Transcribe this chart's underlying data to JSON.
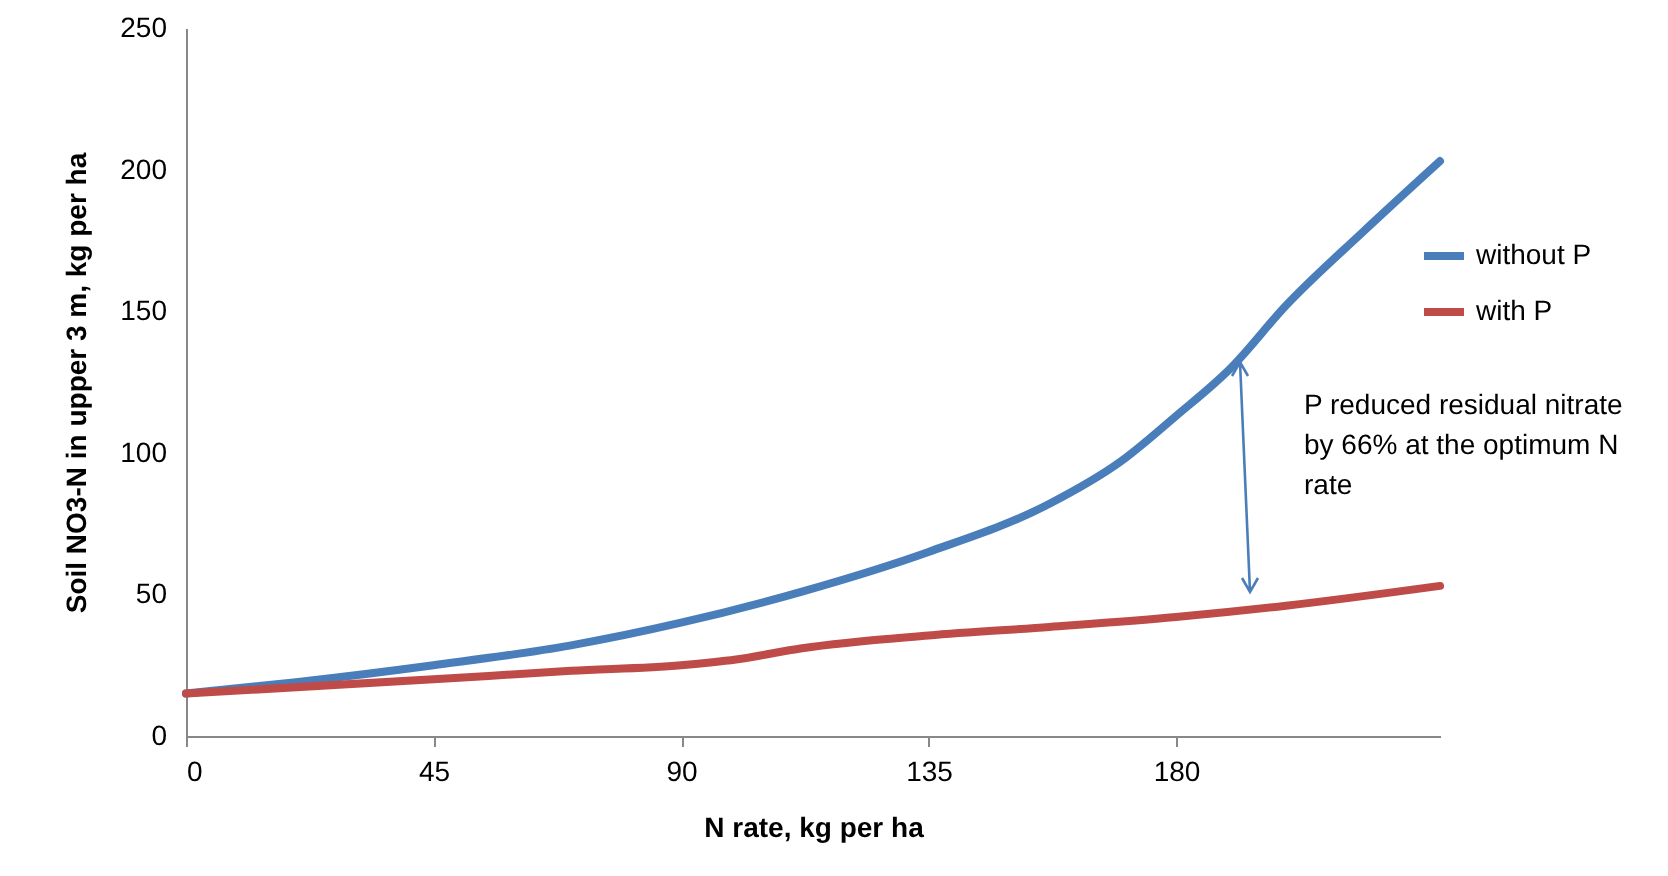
{
  "chart_data": {
    "type": "line",
    "xlabel": "N rate, kg per ha",
    "ylabel": "Soil NO3-N in upper 3 m, kg per ha",
    "xlim": [
      0,
      228
    ],
    "xticks": [
      0,
      45,
      90,
      135,
      180
    ],
    "ylim": [
      0,
      250
    ],
    "yticks": [
      0,
      50,
      100,
      150,
      200,
      250
    ],
    "grid": false,
    "legend": "right",
    "marker": "none",
    "line_style": "solid",
    "series": [
      {
        "name": "without P",
        "color": "#4a7ebb",
        "x": [
          0,
          20,
          45,
          70,
          90,
          112,
          135,
          157,
          170,
          180,
          190,
          200,
          214,
          228
        ],
        "values": [
          15,
          19,
          25,
          32,
          40,
          51,
          65,
          82,
          97,
          113,
          130,
          152,
          178,
          203
        ]
      },
      {
        "name": "with P",
        "color": "#be4b48",
        "x": [
          0,
          45,
          70,
          90,
          100,
          112,
          135,
          157,
          180,
          200,
          228
        ],
        "values": [
          15,
          20,
          23,
          25,
          27,
          31,
          35.5,
          38.5,
          42,
          46,
          53
        ]
      }
    ],
    "annotations": [
      "P reduced residual nitrate by 66% at the optimum N rate"
    ]
  }
}
